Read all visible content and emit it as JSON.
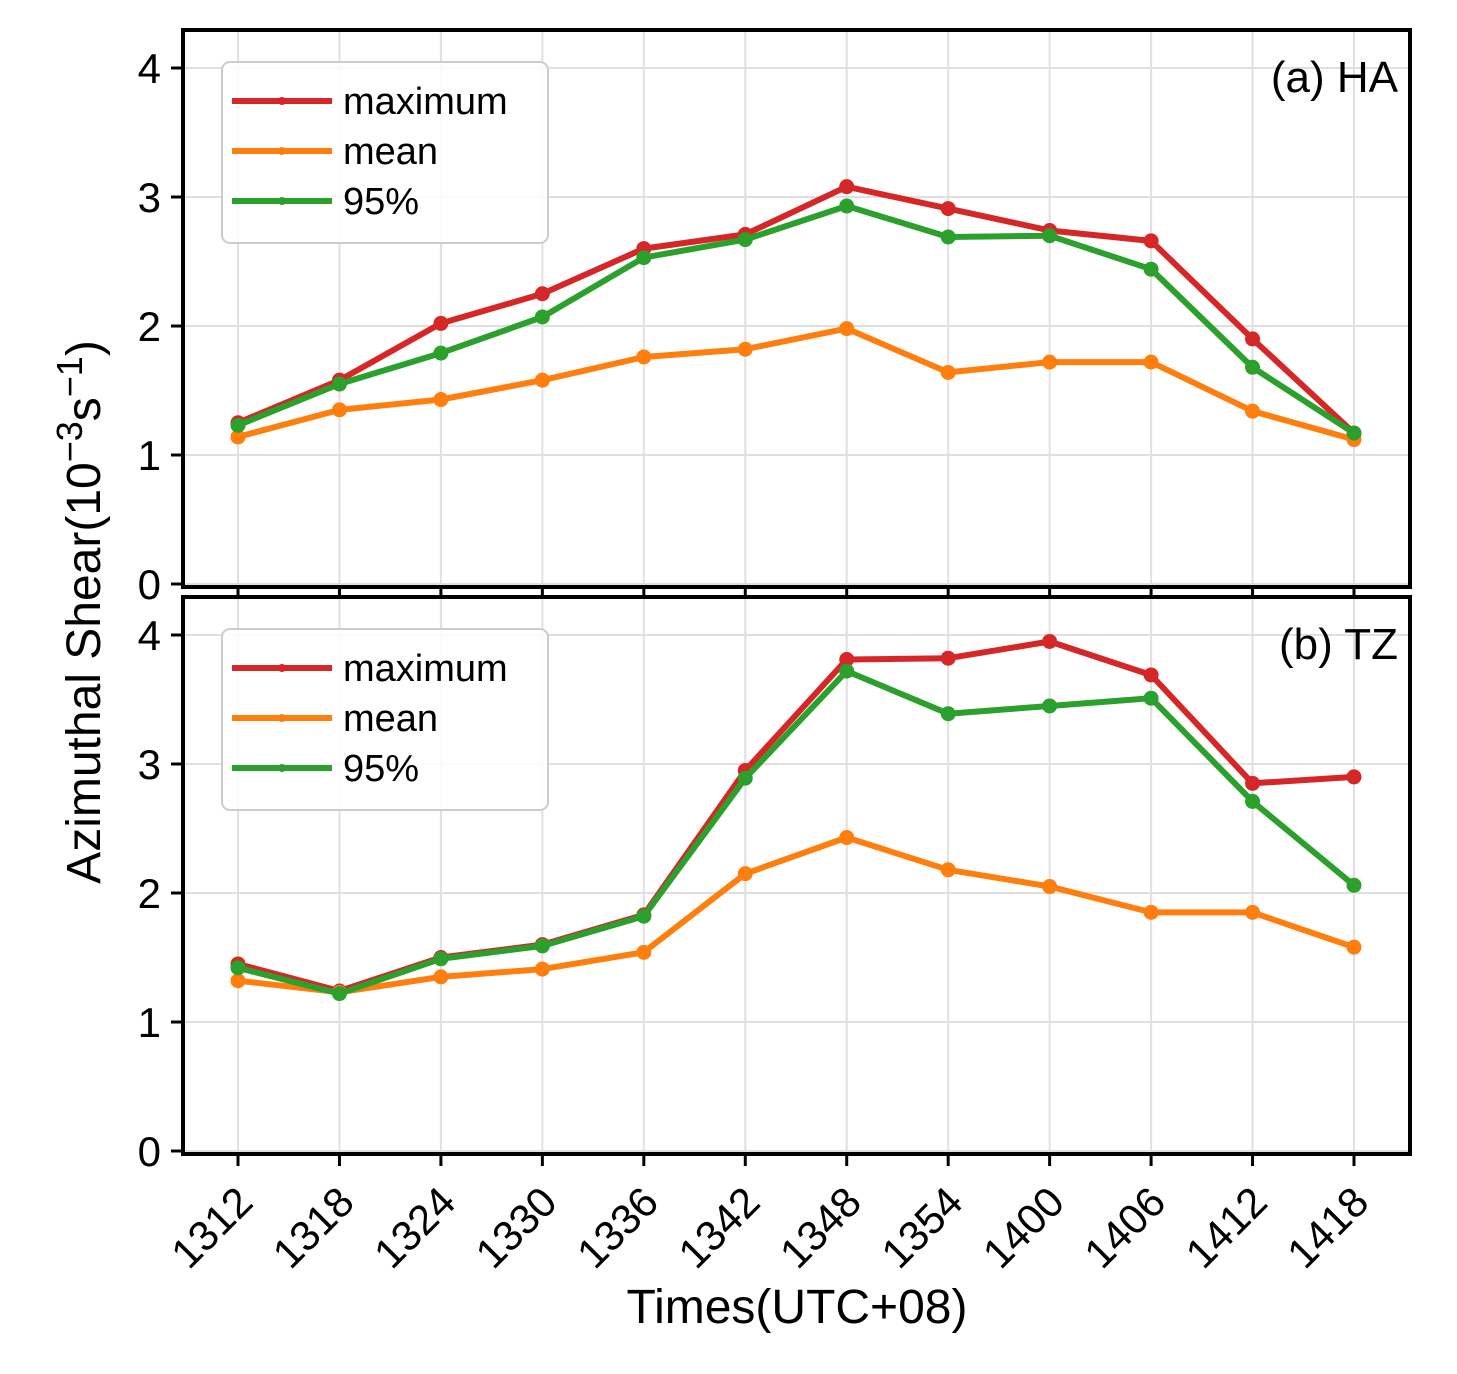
{
  "chart_data": [
    {
      "type": "line",
      "panel": "top",
      "title": "(a) HA",
      "xlabel": "Times(UTC+08)",
      "ylabel": "Azimuthal Shear(10^-3 s^-1)",
      "ylabel_parts": {
        "main": "Azimuthal Shear(10",
        "exp1": "−3",
        "unit": "s",
        "exp2": "−1",
        "close": ")"
      },
      "categories": [
        "1312",
        "1318",
        "1324",
        "1330",
        "1336",
        "1342",
        "1348",
        "1354",
        "1400",
        "1406",
        "1412",
        "1418"
      ],
      "ylim": [
        0,
        4.4
      ],
      "yticks": [
        "0",
        "1",
        "2",
        "3",
        "4"
      ],
      "grid": true,
      "legend_position": "top-left",
      "series": [
        {
          "name": "maximum",
          "color": "#d62728",
          "values": [
            1.25,
            1.58,
            2.02,
            2.25,
            2.6,
            2.71,
            3.08,
            2.91,
            2.74,
            2.66,
            1.9,
            1.17
          ]
        },
        {
          "name": "mean",
          "color": "#ff7f0e",
          "values": [
            1.14,
            1.35,
            1.43,
            1.58,
            1.76,
            1.82,
            1.98,
            1.64,
            1.72,
            1.72,
            1.34,
            1.12
          ]
        },
        {
          "name": "95%",
          "color": "#2ca02c",
          "values": [
            1.23,
            1.55,
            1.79,
            2.07,
            2.53,
            2.67,
            2.93,
            2.69,
            2.7,
            2.44,
            1.68,
            1.17
          ]
        }
      ]
    },
    {
      "type": "line",
      "panel": "bottom",
      "title": "(b) TZ",
      "xlabel": "Times(UTC+08)",
      "ylabel": "Azimuthal Shear(10^-3 s^-1)",
      "categories": [
        "1312",
        "1318",
        "1324",
        "1330",
        "1336",
        "1342",
        "1348",
        "1354",
        "1400",
        "1406",
        "1412",
        "1418"
      ],
      "ylim": [
        0,
        4.4
      ],
      "yticks": [
        "0",
        "1",
        "2",
        "3",
        "4"
      ],
      "grid": true,
      "legend_position": "top-left",
      "series": [
        {
          "name": "maximum",
          "color": "#d62728",
          "values": [
            1.45,
            1.24,
            1.5,
            1.6,
            1.83,
            2.95,
            3.81,
            3.82,
            3.95,
            3.69,
            2.85,
            2.9
          ]
        },
        {
          "name": "mean",
          "color": "#ff7f0e",
          "values": [
            1.32,
            1.23,
            1.35,
            1.41,
            1.54,
            2.15,
            2.43,
            2.18,
            2.05,
            1.85,
            1.85,
            1.58
          ]
        },
        {
          "name": "95%",
          "color": "#2ca02c",
          "values": [
            1.42,
            1.22,
            1.49,
            1.59,
            1.82,
            2.89,
            3.72,
            3.39,
            3.45,
            3.51,
            2.71,
            2.06
          ]
        }
      ]
    }
  ]
}
